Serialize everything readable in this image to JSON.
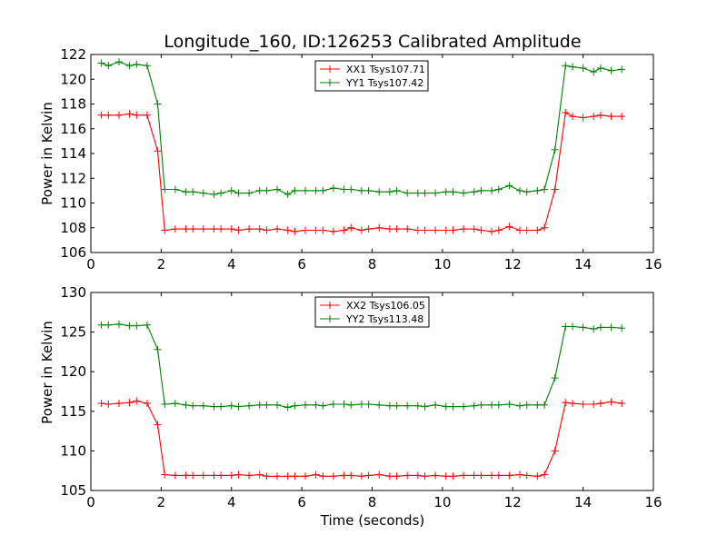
{
  "chart_data": [
    {
      "type": "line",
      "title": "Longitude_160, ID:126253 Calibrated Amplitude",
      "xlabel": "",
      "ylabel": "Power in Kelvin",
      "xlim": [
        0,
        16
      ],
      "ylim": [
        106,
        122
      ],
      "xticks": [
        "0",
        "2",
        "4",
        "6",
        "8",
        "10",
        "12",
        "14",
        "16"
      ],
      "yticks": [
        "106",
        "108",
        "110",
        "112",
        "114",
        "116",
        "118",
        "120",
        "122"
      ],
      "legend_position": "top-center",
      "series": [
        {
          "name": "XX1 Tsys107.71",
          "color": "#ff0000",
          "points": [
            [
              0.3,
              117.1
            ],
            [
              0.5,
              117.1
            ],
            [
              0.8,
              117.1
            ],
            [
              1.1,
              117.2
            ],
            [
              1.3,
              117.1
            ],
            [
              1.6,
              117.1
            ],
            [
              1.9,
              114.2
            ],
            [
              2.1,
              107.8
            ],
            [
              2.4,
              107.9
            ],
            [
              2.7,
              107.9
            ],
            [
              2.9,
              107.9
            ],
            [
              3.2,
              107.9
            ],
            [
              3.5,
              107.9
            ],
            [
              3.7,
              107.9
            ],
            [
              4.0,
              107.9
            ],
            [
              4.2,
              107.8
            ],
            [
              4.5,
              107.9
            ],
            [
              4.8,
              107.9
            ],
            [
              5.0,
              107.8
            ],
            [
              5.3,
              107.9
            ],
            [
              5.6,
              107.8
            ],
            [
              5.8,
              107.7
            ],
            [
              6.1,
              107.8
            ],
            [
              6.4,
              107.8
            ],
            [
              6.6,
              107.8
            ],
            [
              6.9,
              107.7
            ],
            [
              7.2,
              107.8
            ],
            [
              7.4,
              108.0
            ],
            [
              7.7,
              107.8
            ],
            [
              7.9,
              107.9
            ],
            [
              8.2,
              108.0
            ],
            [
              8.5,
              107.9
            ],
            [
              8.7,
              107.9
            ],
            [
              9.0,
              107.9
            ],
            [
              9.3,
              107.8
            ],
            [
              9.5,
              107.8
            ],
            [
              9.8,
              107.8
            ],
            [
              10.1,
              107.8
            ],
            [
              10.3,
              107.8
            ],
            [
              10.6,
              107.9
            ],
            [
              10.9,
              107.9
            ],
            [
              11.1,
              107.8
            ],
            [
              11.4,
              107.7
            ],
            [
              11.6,
              107.8
            ],
            [
              11.9,
              108.1
            ],
            [
              12.2,
              107.8
            ],
            [
              12.4,
              107.8
            ],
            [
              12.7,
              107.8
            ],
            [
              12.9,
              108.0
            ],
            [
              13.2,
              111.1
            ],
            [
              13.5,
              117.3
            ],
            [
              13.7,
              117.0
            ],
            [
              14.0,
              116.9
            ],
            [
              14.3,
              117.0
            ],
            [
              14.5,
              117.1
            ],
            [
              14.8,
              117.0
            ],
            [
              15.1,
              117.0
            ]
          ]
        },
        {
          "name": "YY1 Tsys107.42",
          "color": "#008000",
          "points": [
            [
              0.3,
              121.3
            ],
            [
              0.5,
              121.1
            ],
            [
              0.8,
              121.4
            ],
            [
              1.1,
              121.1
            ],
            [
              1.3,
              121.2
            ],
            [
              1.6,
              121.1
            ],
            [
              1.9,
              118.0
            ],
            [
              2.1,
              111.1
            ],
            [
              2.4,
              111.1
            ],
            [
              2.7,
              110.9
            ],
            [
              2.9,
              110.9
            ],
            [
              3.2,
              110.8
            ],
            [
              3.5,
              110.7
            ],
            [
              3.7,
              110.8
            ],
            [
              4.0,
              111.0
            ],
            [
              4.2,
              110.8
            ],
            [
              4.5,
              110.8
            ],
            [
              4.8,
              111.0
            ],
            [
              5.0,
              111.0
            ],
            [
              5.3,
              111.1
            ],
            [
              5.6,
              110.7
            ],
            [
              5.8,
              111.0
            ],
            [
              6.1,
              111.0
            ],
            [
              6.4,
              111.0
            ],
            [
              6.6,
              111.0
            ],
            [
              6.9,
              111.2
            ],
            [
              7.2,
              111.1
            ],
            [
              7.4,
              111.1
            ],
            [
              7.7,
              111.0
            ],
            [
              7.9,
              111.0
            ],
            [
              8.2,
              110.9
            ],
            [
              8.5,
              110.9
            ],
            [
              8.7,
              111.0
            ],
            [
              9.0,
              110.8
            ],
            [
              9.3,
              110.8
            ],
            [
              9.5,
              110.8
            ],
            [
              9.8,
              110.8
            ],
            [
              10.1,
              110.9
            ],
            [
              10.3,
              110.9
            ],
            [
              10.6,
              110.8
            ],
            [
              10.9,
              110.9
            ],
            [
              11.1,
              111.0
            ],
            [
              11.4,
              111.0
            ],
            [
              11.6,
              111.1
            ],
            [
              11.9,
              111.4
            ],
            [
              12.2,
              111.0
            ],
            [
              12.4,
              110.9
            ],
            [
              12.7,
              111.0
            ],
            [
              12.9,
              111.1
            ],
            [
              13.2,
              114.3
            ],
            [
              13.5,
              121.1
            ],
            [
              13.7,
              121.0
            ],
            [
              14.0,
              120.9
            ],
            [
              14.3,
              120.6
            ],
            [
              14.5,
              120.9
            ],
            [
              14.8,
              120.7
            ],
            [
              15.1,
              120.8
            ]
          ]
        }
      ]
    },
    {
      "type": "line",
      "title": "",
      "xlabel": "Time (seconds)",
      "ylabel": "Power in Kelvin",
      "xlim": [
        0,
        16
      ],
      "ylim": [
        105,
        130
      ],
      "xticks": [
        "0",
        "2",
        "4",
        "6",
        "8",
        "10",
        "12",
        "14",
        "16"
      ],
      "yticks": [
        "105",
        "110",
        "115",
        "120",
        "125",
        "130"
      ],
      "legend_position": "top-center",
      "series": [
        {
          "name": "XX2 Tsys106.05",
          "color": "#ff0000",
          "points": [
            [
              0.3,
              116.0
            ],
            [
              0.5,
              115.9
            ],
            [
              0.8,
              116.0
            ],
            [
              1.1,
              116.1
            ],
            [
              1.3,
              116.3
            ],
            [
              1.6,
              116.0
            ],
            [
              1.9,
              113.3
            ],
            [
              2.1,
              107.0
            ],
            [
              2.4,
              106.9
            ],
            [
              2.7,
              106.9
            ],
            [
              2.9,
              106.9
            ],
            [
              3.2,
              106.9
            ],
            [
              3.5,
              106.9
            ],
            [
              3.7,
              106.9
            ],
            [
              4.0,
              106.9
            ],
            [
              4.2,
              107.0
            ],
            [
              4.5,
              106.9
            ],
            [
              4.8,
              107.0
            ],
            [
              5.0,
              106.8
            ],
            [
              5.3,
              106.8
            ],
            [
              5.6,
              106.8
            ],
            [
              5.8,
              106.8
            ],
            [
              6.1,
              106.8
            ],
            [
              6.4,
              107.0
            ],
            [
              6.6,
              106.8
            ],
            [
              6.9,
              106.8
            ],
            [
              7.2,
              106.9
            ],
            [
              7.4,
              106.9
            ],
            [
              7.7,
              106.8
            ],
            [
              7.9,
              106.9
            ],
            [
              8.2,
              107.0
            ],
            [
              8.5,
              106.8
            ],
            [
              8.7,
              106.8
            ],
            [
              9.0,
              106.9
            ],
            [
              9.3,
              106.9
            ],
            [
              9.5,
              106.8
            ],
            [
              9.8,
              106.9
            ],
            [
              10.1,
              106.8
            ],
            [
              10.3,
              106.8
            ],
            [
              10.6,
              106.9
            ],
            [
              10.9,
              106.9
            ],
            [
              11.1,
              106.9
            ],
            [
              11.4,
              106.9
            ],
            [
              11.6,
              106.9
            ],
            [
              11.9,
              106.9
            ],
            [
              12.2,
              107.0
            ],
            [
              12.4,
              106.9
            ],
            [
              12.7,
              106.8
            ],
            [
              12.9,
              107.0
            ],
            [
              13.2,
              110.0
            ],
            [
              13.5,
              116.1
            ],
            [
              13.7,
              116.0
            ],
            [
              14.0,
              115.9
            ],
            [
              14.3,
              115.9
            ],
            [
              14.5,
              116.0
            ],
            [
              14.8,
              116.2
            ],
            [
              15.1,
              116.0
            ]
          ]
        },
        {
          "name": "YY2 Tsys113.48",
          "color": "#008000",
          "points": [
            [
              0.3,
              125.9
            ],
            [
              0.5,
              125.9
            ],
            [
              0.8,
              126.0
            ],
            [
              1.1,
              125.8
            ],
            [
              1.3,
              125.8
            ],
            [
              1.6,
              125.9
            ],
            [
              1.9,
              122.8
            ],
            [
              2.1,
              115.9
            ],
            [
              2.4,
              116.0
            ],
            [
              2.7,
              115.8
            ],
            [
              2.9,
              115.7
            ],
            [
              3.2,
              115.7
            ],
            [
              3.5,
              115.6
            ],
            [
              3.7,
              115.6
            ],
            [
              4.0,
              115.7
            ],
            [
              4.2,
              115.6
            ],
            [
              4.5,
              115.7
            ],
            [
              4.8,
              115.8
            ],
            [
              5.0,
              115.8
            ],
            [
              5.3,
              115.8
            ],
            [
              5.6,
              115.5
            ],
            [
              5.8,
              115.7
            ],
            [
              6.1,
              115.8
            ],
            [
              6.4,
              115.8
            ],
            [
              6.6,
              115.7
            ],
            [
              6.9,
              115.9
            ],
            [
              7.2,
              115.9
            ],
            [
              7.4,
              115.8
            ],
            [
              7.7,
              115.9
            ],
            [
              7.9,
              115.9
            ],
            [
              8.2,
              115.8
            ],
            [
              8.5,
              115.7
            ],
            [
              8.7,
              115.7
            ],
            [
              9.0,
              115.7
            ],
            [
              9.3,
              115.7
            ],
            [
              9.5,
              115.6
            ],
            [
              9.8,
              115.8
            ],
            [
              10.1,
              115.6
            ],
            [
              10.3,
              115.6
            ],
            [
              10.6,
              115.6
            ],
            [
              10.9,
              115.7
            ],
            [
              11.1,
              115.8
            ],
            [
              11.4,
              115.8
            ],
            [
              11.6,
              115.8
            ],
            [
              11.9,
              115.9
            ],
            [
              12.2,
              115.7
            ],
            [
              12.4,
              115.8
            ],
            [
              12.7,
              115.8
            ],
            [
              12.9,
              115.8
            ],
            [
              13.2,
              119.2
            ],
            [
              13.5,
              125.7
            ],
            [
              13.7,
              125.7
            ],
            [
              14.0,
              125.6
            ],
            [
              14.3,
              125.4
            ],
            [
              14.5,
              125.6
            ],
            [
              14.8,
              125.6
            ],
            [
              15.1,
              125.5
            ]
          ]
        }
      ]
    }
  ]
}
